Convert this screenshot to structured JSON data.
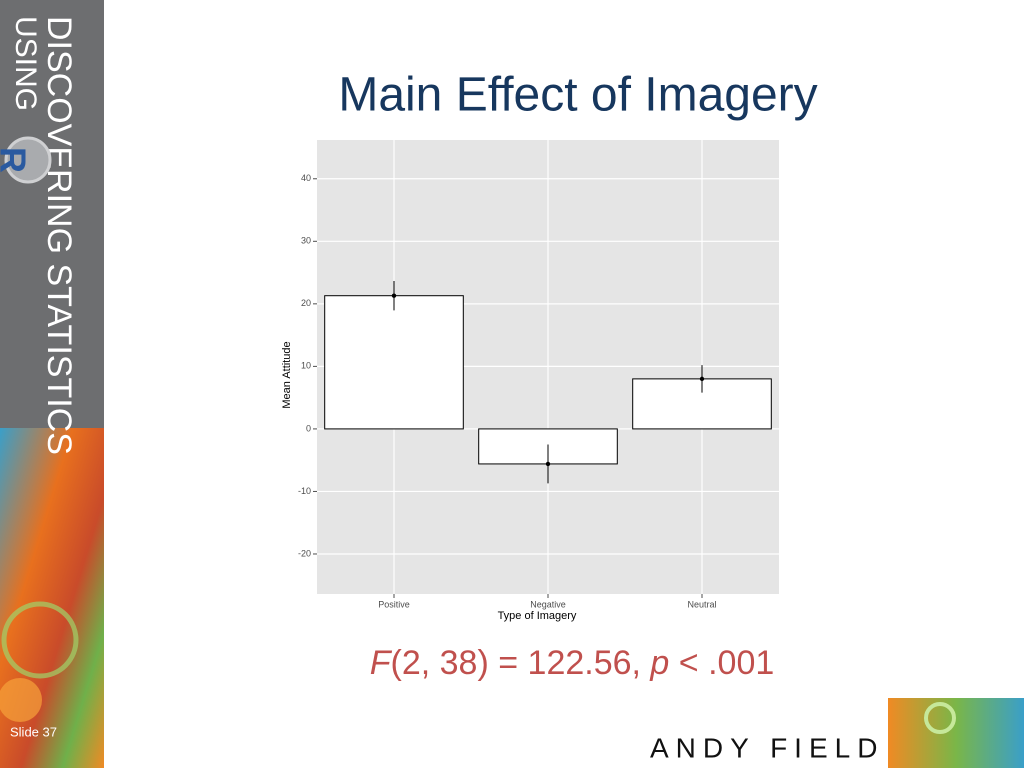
{
  "slide": {
    "sidebar_title": "DISCOVERING STATISTICS",
    "sidebar_subtitle": "USING",
    "sidebar_logo": "R",
    "stat_parts": [
      "F",
      "(2, 38) = 122.56, ",
      "p",
      " < .001"
    ],
    "slide_number": "Slide 37",
    "author": "ANDY FIELD"
  },
  "chart_data": {
    "type": "bar",
    "title": "Main Effect of Imagery",
    "x_label": "Type of Imagery",
    "y_label": "Mean Attitude",
    "categories": [
      "Positive",
      "Negative",
      "Neutral"
    ],
    "values": [
      21.3,
      -5.6,
      8.0
    ],
    "errors": [
      2.35,
      3.1,
      2.2
    ],
    "color": "#ffffff",
    "ylim": [
      -26.4,
      46.2
    ],
    "yticks": [
      -20,
      -10,
      0,
      10,
      20,
      30,
      40
    ],
    "grid": true
  }
}
